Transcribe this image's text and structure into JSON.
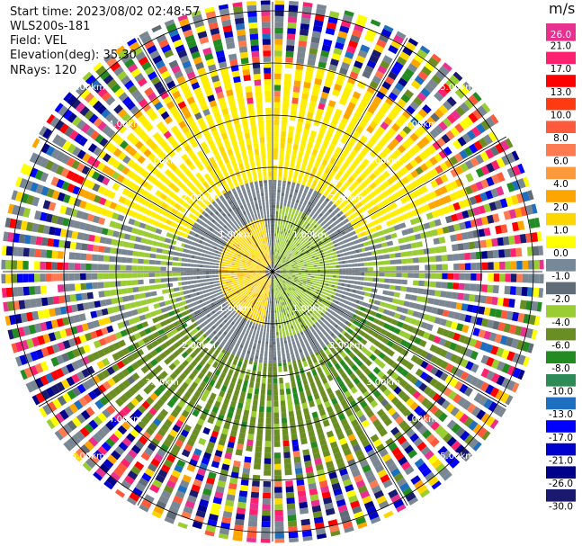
{
  "header": {
    "start_time": "Start time: 2023/08/02 02:48:57",
    "instrument": "WLS200s-181",
    "field": "Field: VEL",
    "elevation": "Elevation(deg): 35.30",
    "nrays": "NRays: 120"
  },
  "colorbar": {
    "units": "m/s",
    "ticks": [
      "26.0",
      "21.0",
      "17.0",
      "13.0",
      "10.0",
      "8.0",
      "6.0",
      "4.0",
      "2.0",
      "1.0",
      "0.0",
      "-1.0",
      "-2.0",
      "-4.0",
      "-6.0",
      "-8.0",
      "-10.0",
      "-13.0",
      "-17.0",
      "-21.0",
      "-26.0",
      "-30.0"
    ],
    "colors": [
      "#e8308f",
      "#ff2070",
      "#ff0000",
      "#ff3b14",
      "#ff5a3c",
      "#ff7a50",
      "#ff9a3c",
      "#ffa500",
      "#ffd700",
      "#ffff00",
      "#778899",
      "#606c78",
      "#9acd32",
      "#6b8e23",
      "#228b22",
      "#2e8b57",
      "#1e6fbf",
      "#0000ff",
      "#0000cd",
      "#00008b",
      "#191970"
    ]
  },
  "chart_data": {
    "type": "ppi",
    "title": "Start time: 2023/08/02 02:48:57",
    "field": "VEL",
    "units": "m/s",
    "elevation_deg": 35.3,
    "nrays": 120,
    "range_rings_km": [
      1.0,
      2.0,
      3.0,
      4.0,
      5.0
    ],
    "range_labels": [
      {
        "text": "1.00km"
      },
      {
        "text": "1.00km"
      },
      {
        "text": "1.00km"
      },
      {
        "text": "1.00km"
      },
      {
        "text": "2.00km"
      },
      {
        "text": "2.00km"
      },
      {
        "text": "2.00km"
      },
      {
        "text": "2.00km"
      },
      {
        "text": "3.00km"
      },
      {
        "text": "3.00km"
      },
      {
        "text": "3.00km"
      },
      {
        "text": "3.00km"
      },
      {
        "text": "4.00km"
      },
      {
        "text": "4.00km"
      },
      {
        "text": "4.00km"
      },
      {
        "text": "4.00km"
      },
      {
        "text": "5.00km"
      },
      {
        "text": "5.00km"
      },
      {
        "text": "5.00km"
      },
      {
        "text": "5.00km"
      }
    ],
    "spokes_deg": [
      0,
      30,
      60,
      90,
      120,
      150,
      180,
      210,
      240,
      270,
      300,
      330
    ],
    "pattern": {
      "inner_gray_zone_km": [
        0.0,
        1.7
      ],
      "near_positive_sector": "west (yellow, +1 to +4 m/s)",
      "near_negative_sector": "east (light green, -1 to -2 m/s)",
      "mid_positive_sector": "north (yellow, +2 to +4 m/s)",
      "mid_negative_sector": "south (olive/green, -2 to -6 m/s)",
      "outer_noise_km": [
        3.5,
        5.4
      ]
    }
  }
}
